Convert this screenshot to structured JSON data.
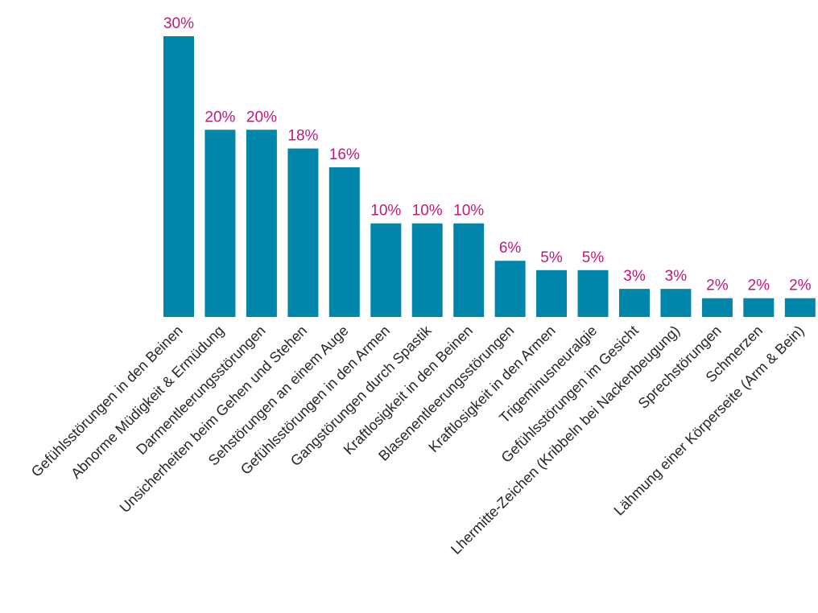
{
  "chart_data": {
    "type": "bar",
    "title": "",
    "xlabel": "",
    "ylabel": "",
    "value_suffix": "%",
    "ylim": [
      0,
      30
    ],
    "grid": false,
    "legend": "none",
    "colors": {
      "bar": "#0086ab",
      "value_label": "#c2187a",
      "category_label": "#262626"
    },
    "categories": [
      "Gefühlsstörungen in den Beinen",
      "Abnorme Müdigkeit & Ermüdung",
      "Darmentleerungsstörungen",
      "Unsicherheiten beim Gehen und Stehen",
      "Sehstörungen an einem Auge",
      "Gefühlsstörungen in den Armen",
      "Gangstörungen durch Spastik",
      "Kraftlosigkeit in den Beinen",
      "Blasenentleerungsstörungen",
      "Kraftlosigkeit in den Armen",
      "Trigeminusneuralgie",
      "Gefühlsstörungen im Gesicht",
      "Lhermitte-Zeichen (Kribbeln bei Nackenbeugung)",
      "Sprechstörungen",
      "Schmerzen",
      "Lähmung einer Körperseite (Arm & Bein)"
    ],
    "values": [
      30,
      20,
      20,
      18,
      16,
      10,
      10,
      10,
      6,
      5,
      5,
      3,
      3,
      2,
      2,
      2
    ],
    "value_labels": [
      "30%",
      "20%",
      "20%",
      "18%",
      "16%",
      "10%",
      "10%",
      "10%",
      "6%",
      "5%",
      "5%",
      "3%",
      "3%",
      "2%",
      "2%",
      "2%"
    ]
  }
}
